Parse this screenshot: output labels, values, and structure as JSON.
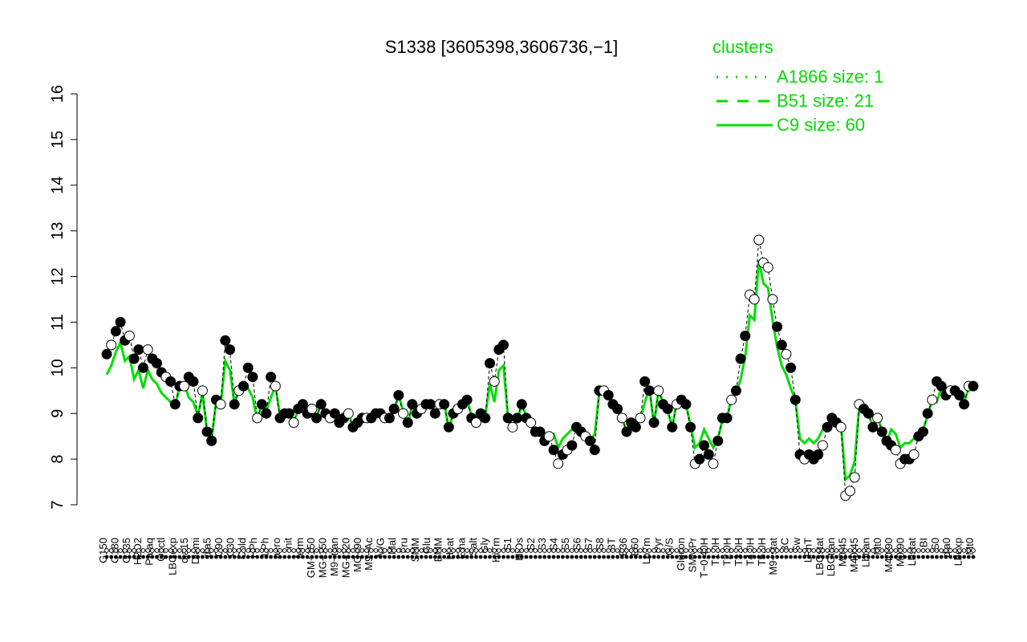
{
  "chart_data": {
    "type": "line",
    "title": "S1338 [3605398,3606736,−1]",
    "xlabel": "",
    "ylabel": "",
    "ylim": [
      7,
      16
    ],
    "yticks": [
      7,
      8,
      9,
      10,
      11,
      12,
      13,
      14,
      15,
      16
    ],
    "x_tick_labels": [
      "G150",
      "G180",
      "G135",
      "H2O2",
      "Paraq",
      "Oxctl",
      "LBGexp",
      "dia15",
      "Diami",
      "dia5",
      "C90",
      "C30",
      "Cold",
      "HPh",
      "LPh",
      "aero",
      "nit",
      "ferm",
      "GM+150",
      "MG+150",
      "M9−tran",
      "MG+120",
      "MG+90",
      "M9−Ac",
      "M/G",
      "Mal",
      "Fru",
      "SMM",
      "Glu",
      "BMM",
      "Heat",
      "Etha",
      "Salt",
      "Gly",
      "HiTm",
      "S1",
      "HiOs",
      "S2",
      "S3",
      "S4",
      "S5",
      "S6",
      "S7",
      "S8",
      "BT",
      "B36",
      "B60",
      "LoTm",
      "Pyr",
      "G/S",
      "Glucon",
      "SMMPr",
      "T−0.40H",
      "T1.0H",
      "T2.0H",
      "T3.0H",
      "T4.0H",
      "T5.0H",
      "M9−stat",
      "BC",
      "Sw",
      "LPhT",
      "LBGstat",
      "LBGtran",
      "M0t45",
      "M40t45",
      "Lbtran",
      "Mt0",
      "M40t90",
      "M0t90",
      "Lbstat",
      "BI",
      "S0",
      "dia0",
      "Lbexp",
      "Mt0"
    ],
    "series": [
      {
        "name": "A1866 size: 1",
        "style": "dotted",
        "color": "#00dd00",
        "values": []
      },
      {
        "name": "B51 size: 21",
        "style": "dashed",
        "color": "#00dd00",
        "values": []
      },
      {
        "name": "C9 size: 60",
        "style": "solid",
        "color": "#00dd00",
        "values": []
      }
    ],
    "points": [
      10.3,
      10.5,
      10.8,
      11.0,
      10.6,
      10.7,
      10.2,
      10.4,
      10.0,
      10.4,
      10.2,
      10.1,
      9.9,
      9.8,
      9.7,
      9.2,
      9.6,
      9.6,
      9.8,
      9.7,
      8.9,
      9.5,
      8.6,
      8.4,
      9.3,
      9.2,
      10.6,
      10.4,
      9.2,
      9.5,
      9.6,
      10.0,
      9.8,
      8.9,
      9.2,
      9.0,
      9.8,
      9.6,
      8.9,
      9.0,
      9.0,
      8.8,
      9.1,
      9.2,
      9.0,
      9.1,
      8.9,
      9.2,
      9.0,
      8.9,
      9.0,
      8.8,
      8.9,
      9.0,
      8.7,
      8.8,
      8.9,
      8.9,
      8.9,
      9.0,
      9.0,
      8.9,
      8.9,
      9.1,
      9.4,
      9.0,
      8.8,
      9.2,
      9.0,
      9.1,
      9.2,
      9.2,
      9.0,
      9.2,
      9.2,
      8.7,
      9.0,
      9.1,
      9.2,
      9.3,
      8.9,
      8.8,
      9.0,
      8.9,
      10.1,
      9.7,
      10.4,
      10.5,
      8.9,
      8.7,
      8.9,
      9.2,
      8.9,
      8.8,
      8.6,
      8.6,
      8.4,
      8.5,
      8.2,
      7.9,
      8.1,
      8.2,
      8.3,
      8.7,
      8.6,
      8.5,
      8.4,
      8.2,
      9.5,
      9.5,
      9.4,
      9.2,
      9.1,
      8.9,
      8.6,
      8.8,
      8.7,
      8.9,
      9.7,
      9.5,
      8.8,
      9.5,
      9.2,
      9.1,
      8.7,
      9.2,
      9.3,
      9.2,
      8.7,
      7.9,
      8.0,
      8.3,
      8.1,
      7.9,
      8.4,
      8.9,
      8.9,
      9.3,
      9.5,
      10.2,
      10.7,
      11.6,
      11.5,
      12.8,
      12.3,
      12.2,
      11.5,
      10.9,
      10.5,
      10.3,
      10.0,
      9.3,
      8.1,
      8.0,
      8.1,
      8.0,
      8.1,
      8.3,
      8.7,
      8.9,
      8.8,
      8.7,
      7.2,
      7.3,
      7.6,
      9.2,
      9.1,
      9.0,
      8.7,
      8.9,
      8.6,
      8.4,
      8.3,
      8.2,
      7.9,
      8.0,
      8.0,
      8.1,
      8.5,
      8.6,
      9.0,
      9.3,
      9.7,
      9.6,
      9.4,
      9.5,
      9.5,
      9.4,
      9.2,
      9.6,
      9.6
    ]
  },
  "legend": {
    "title": "clusters",
    "entries": [
      "A1866 size: 1",
      "B51 size: 21",
      "C9 size: 60"
    ]
  },
  "colors": {
    "line": "#00dd00",
    "axis": "#000000",
    "marker_fill": "#000000",
    "marker_open": "#ffffff"
  }
}
